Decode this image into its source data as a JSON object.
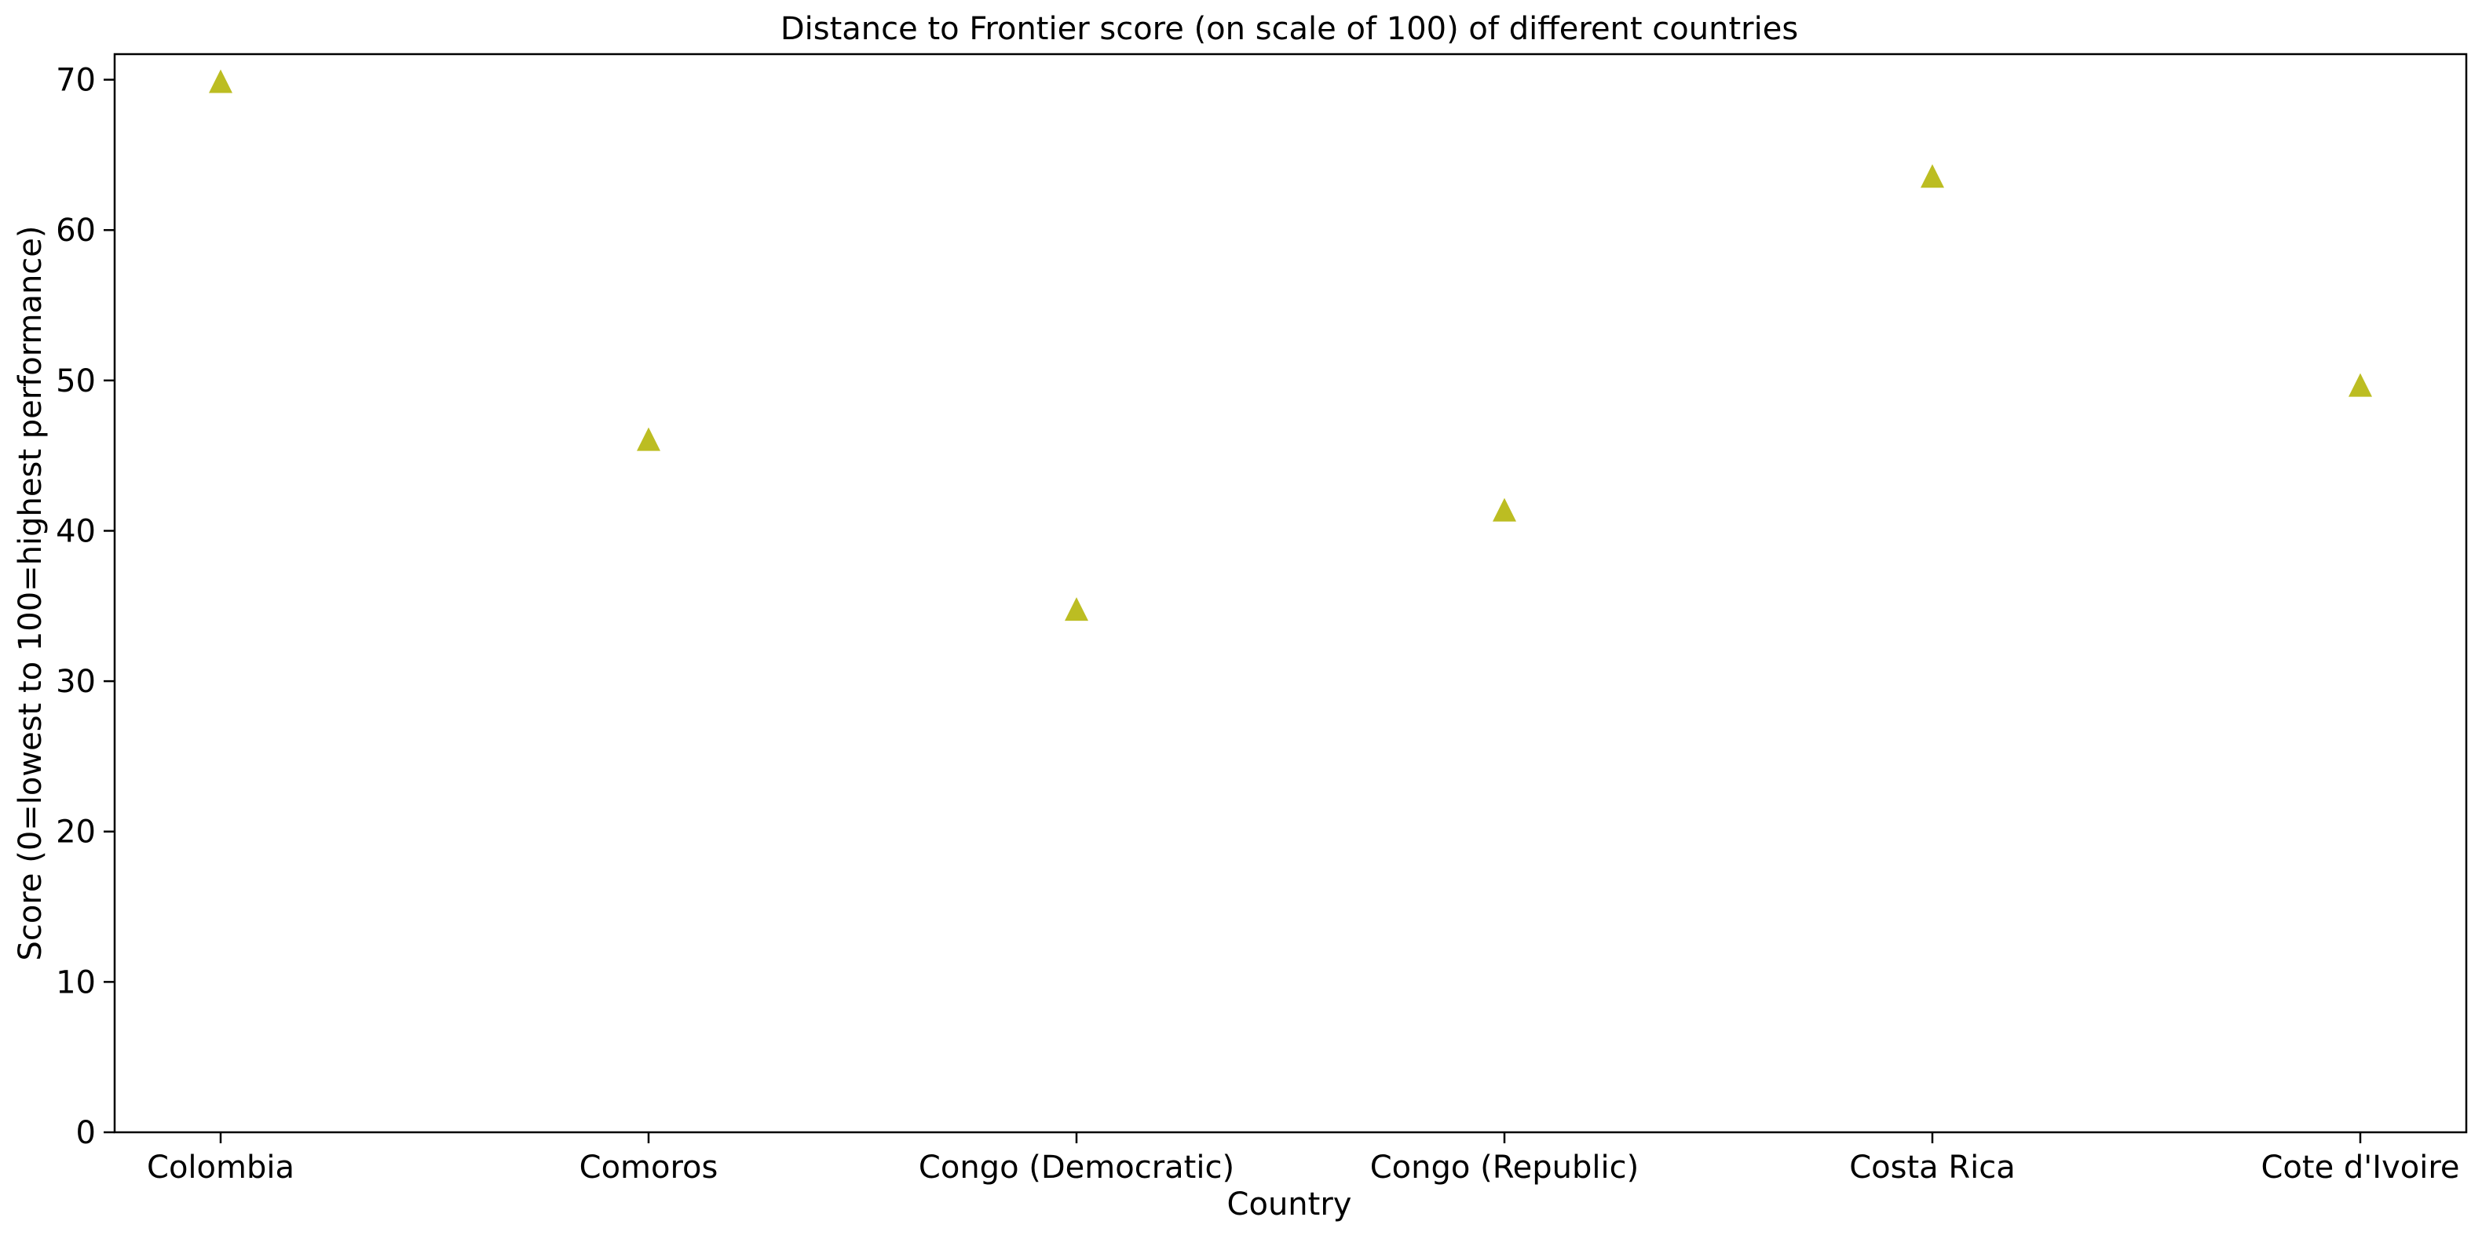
{
  "chart_data": {
    "type": "scatter",
    "title": "Distance to Frontier score (on scale of 100) of different countries",
    "xlabel": "Country",
    "ylabel": "Score (0=lowest to 100=highest performance)",
    "categories": [
      "Colombia",
      "Comoros",
      "Congo (Democratic)",
      "Congo (Republic)",
      "Costa Rica",
      "Cote d'Ivoire"
    ],
    "values": [
      69.9,
      46.1,
      34.8,
      41.4,
      63.6,
      49.7
    ],
    "ylim": [
      0,
      71.7
    ],
    "yticks": [
      "0",
      "10",
      "20",
      "30",
      "40",
      "50",
      "60",
      "70"
    ],
    "marker": "triangle-up",
    "marker_color": "#bcbd22",
    "grid": false,
    "legend": "none"
  }
}
